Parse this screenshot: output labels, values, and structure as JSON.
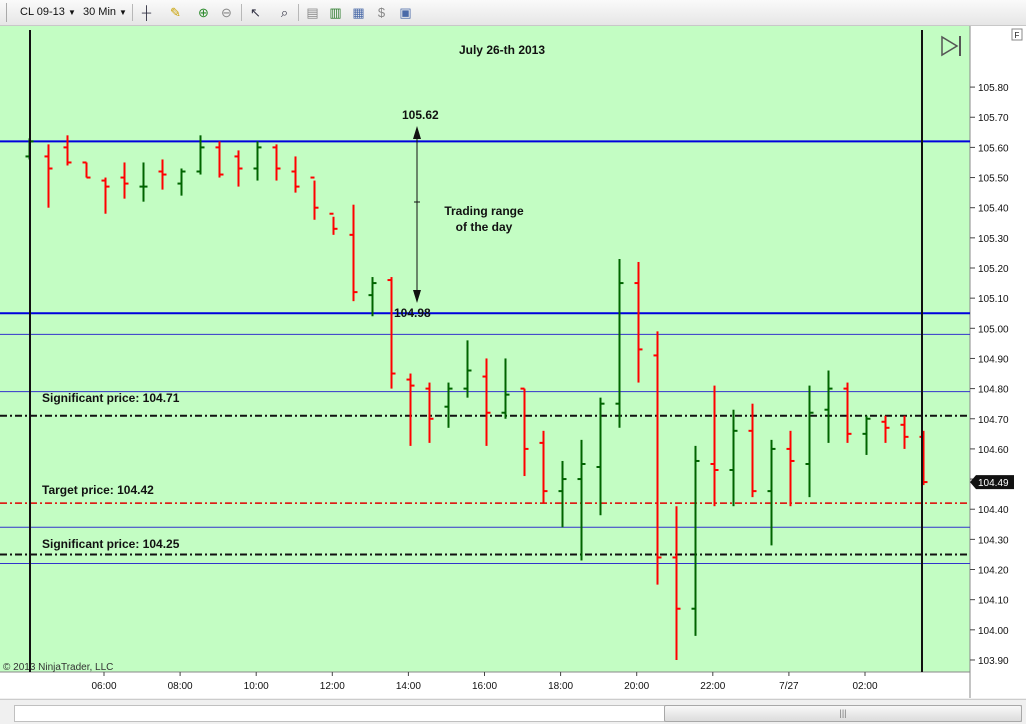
{
  "toolbar": {
    "instrument": "CL 09-13",
    "interval": "30 Min",
    "icons": [
      "bar-style-icon",
      "draw-tool-icon",
      "zoom-in-icon",
      "zoom-out-icon",
      "cursor-icon",
      "magnify-icon",
      "data-box-icon",
      "indicators-icon",
      "strategies-icon",
      "instrument-icon",
      "properties-icon"
    ]
  },
  "chart": {
    "title": "July 26-th 2013",
    "copyright": "© 2013 NinjaTrader, LLC",
    "last_price_label": "104.49",
    "axis_corner": "F",
    "range_label": "Trading range",
    "range_label2": "of the day",
    "range_high_label": "105.62",
    "range_low_label": "104.98",
    "sig1_label": "Significant price: 104.71",
    "target_label": "Target price: 104.42",
    "sig2_label": "Significant price: 104.25",
    "colors": {
      "background": "#c3fdc3",
      "up": "#006400",
      "down": "#ff0000",
      "range_line": "#0000dd",
      "thin_line": "#3333cc",
      "target": "#e00000"
    }
  },
  "chart_data": {
    "type": "ohlc",
    "yticks": [
      103.9,
      104.0,
      104.1,
      104.2,
      104.3,
      104.4,
      104.5,
      104.6,
      104.7,
      104.8,
      104.9,
      105.0,
      105.1,
      105.2,
      105.3,
      105.4,
      105.5,
      105.6,
      105.7,
      105.8
    ],
    "ylim": [
      103.88,
      105.86
    ],
    "xticks": [
      "06:00",
      "08:00",
      "10:00",
      "12:00",
      "14:00",
      "16:00",
      "18:00",
      "20:00",
      "22:00",
      "7/27",
      "02:00"
    ],
    "hlines": [
      {
        "price": 105.62,
        "style": "thick-blue"
      },
      {
        "price": 105.05,
        "style": "thick-blue"
      },
      {
        "price": 104.98,
        "style": "thin-blue"
      },
      {
        "price": 104.79,
        "style": "thin-blue"
      },
      {
        "price": 104.71,
        "style": "black-dashdot"
      },
      {
        "price": 104.42,
        "style": "red-dashdot"
      },
      {
        "price": 104.34,
        "style": "thin-blue"
      },
      {
        "price": 104.25,
        "style": "black-dashdot"
      },
      {
        "price": 104.22,
        "style": "thin-blue"
      }
    ],
    "bars": [
      {
        "dir": "up",
        "o": 105.57,
        "h": 105.63,
        "l": 105.56,
        "c": 105.62
      },
      {
        "dir": "down",
        "o": 105.57,
        "h": 105.61,
        "l": 105.4,
        "c": 105.53
      },
      {
        "dir": "down",
        "o": 105.6,
        "h": 105.64,
        "l": 105.54,
        "c": 105.55
      },
      {
        "dir": "down",
        "o": 105.55,
        "h": 105.55,
        "l": 105.5,
        "c": 105.5
      },
      {
        "dir": "down",
        "o": 105.49,
        "h": 105.5,
        "l": 105.38,
        "c": 105.47
      },
      {
        "dir": "down",
        "o": 105.5,
        "h": 105.55,
        "l": 105.43,
        "c": 105.48
      },
      {
        "dir": "up",
        "o": 105.47,
        "h": 105.55,
        "l": 105.42,
        "c": 105.47
      },
      {
        "dir": "down",
        "o": 105.52,
        "h": 105.56,
        "l": 105.46,
        "c": 105.51
      },
      {
        "dir": "up",
        "o": 105.48,
        "h": 105.53,
        "l": 105.44,
        "c": 105.52
      },
      {
        "dir": "up",
        "o": 105.52,
        "h": 105.64,
        "l": 105.51,
        "c": 105.6
      },
      {
        "dir": "down",
        "o": 105.6,
        "h": 105.62,
        "l": 105.5,
        "c": 105.51
      },
      {
        "dir": "down",
        "o": 105.57,
        "h": 105.59,
        "l": 105.47,
        "c": 105.53
      },
      {
        "dir": "up",
        "o": 105.53,
        "h": 105.62,
        "l": 105.49,
        "c": 105.6
      },
      {
        "dir": "down",
        "o": 105.6,
        "h": 105.61,
        "l": 105.49,
        "c": 105.53
      },
      {
        "dir": "down",
        "o": 105.52,
        "h": 105.57,
        "l": 105.45,
        "c": 105.47
      },
      {
        "dir": "down",
        "o": 105.5,
        "h": 105.49,
        "l": 105.36,
        "c": 105.4
      },
      {
        "dir": "down",
        "o": 105.38,
        "h": 105.37,
        "l": 105.31,
        "c": 105.33
      },
      {
        "dir": "down",
        "o": 105.31,
        "h": 105.41,
        "l": 105.09,
        "c": 105.12
      },
      {
        "dir": "up",
        "o": 105.11,
        "h": 105.17,
        "l": 105.04,
        "c": 105.15
      },
      {
        "dir": "down",
        "o": 105.16,
        "h": 105.17,
        "l": 104.8,
        "c": 104.85
      },
      {
        "dir": "down",
        "o": 104.83,
        "h": 104.85,
        "l": 104.61,
        "c": 104.81
      },
      {
        "dir": "down",
        "o": 104.8,
        "h": 104.82,
        "l": 104.62,
        "c": 104.7
      },
      {
        "dir": "up",
        "o": 104.74,
        "h": 104.82,
        "l": 104.67,
        "c": 104.8
      },
      {
        "dir": "up",
        "o": 104.8,
        "h": 104.96,
        "l": 104.77,
        "c": 104.86
      },
      {
        "dir": "down",
        "o": 104.84,
        "h": 104.9,
        "l": 104.61,
        "c": 104.72
      },
      {
        "dir": "up",
        "o": 104.72,
        "h": 104.9,
        "l": 104.7,
        "c": 104.78
      },
      {
        "dir": "down",
        "o": 104.8,
        "h": 104.8,
        "l": 104.51,
        "c": 104.6
      },
      {
        "dir": "down",
        "o": 104.62,
        "h": 104.66,
        "l": 104.42,
        "c": 104.46
      },
      {
        "dir": "up",
        "o": 104.46,
        "h": 104.56,
        "l": 104.34,
        "c": 104.5
      },
      {
        "dir": "up",
        "o": 104.5,
        "h": 104.63,
        "l": 104.23,
        "c": 104.55
      },
      {
        "dir": "up",
        "o": 104.54,
        "h": 104.77,
        "l": 104.38,
        "c": 104.75
      },
      {
        "dir": "up",
        "o": 104.75,
        "h": 105.23,
        "l": 104.67,
        "c": 105.15
      },
      {
        "dir": "down",
        "o": 105.15,
        "h": 105.22,
        "l": 104.82,
        "c": 104.93
      },
      {
        "dir": "down",
        "o": 104.91,
        "h": 104.99,
        "l": 104.15,
        "c": 104.24
      },
      {
        "dir": "down",
        "o": 104.24,
        "h": 104.41,
        "l": 103.9,
        "c": 104.07
      },
      {
        "dir": "up",
        "o": 104.07,
        "h": 104.61,
        "l": 103.98,
        "c": 104.56
      },
      {
        "dir": "down",
        "o": 104.55,
        "h": 104.81,
        "l": 104.41,
        "c": 104.53
      },
      {
        "dir": "up",
        "o": 104.53,
        "h": 104.73,
        "l": 104.41,
        "c": 104.66
      },
      {
        "dir": "down",
        "o": 104.66,
        "h": 104.75,
        "l": 104.44,
        "c": 104.46
      },
      {
        "dir": "up",
        "o": 104.46,
        "h": 104.63,
        "l": 104.28,
        "c": 104.6
      },
      {
        "dir": "down",
        "o": 104.6,
        "h": 104.66,
        "l": 104.41,
        "c": 104.56
      },
      {
        "dir": "up",
        "o": 104.55,
        "h": 104.81,
        "l": 104.44,
        "c": 104.72
      },
      {
        "dir": "up",
        "o": 104.73,
        "h": 104.86,
        "l": 104.62,
        "c": 104.8
      },
      {
        "dir": "down",
        "o": 104.8,
        "h": 104.82,
        "l": 104.62,
        "c": 104.65
      },
      {
        "dir": "up",
        "o": 104.65,
        "h": 104.71,
        "l": 104.58,
        "c": 104.7
      },
      {
        "dir": "down",
        "o": 104.69,
        "h": 104.71,
        "l": 104.62,
        "c": 104.67
      },
      {
        "dir": "down",
        "o": 104.68,
        "h": 104.71,
        "l": 104.6,
        "c": 104.64
      },
      {
        "dir": "down",
        "o": 104.64,
        "h": 104.66,
        "l": 104.48,
        "c": 104.49
      }
    ]
  }
}
